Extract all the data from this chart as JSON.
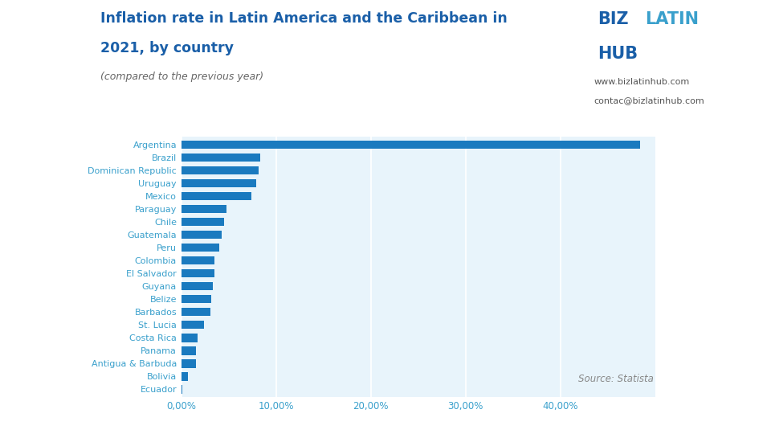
{
  "title_line1": "Inflation rate in Latin America and the Caribbean in",
  "title_line2": "2021, by country",
  "subtitle": "(compared to the previous year)",
  "source": "Source: Statista",
  "website1": "www.bizlatinhub.com",
  "website2": "contac@bizlatinhub.com",
  "countries": [
    "Argentina",
    "Brazil",
    "Dominican Republic",
    "Uruguay",
    "Mexico",
    "Paraguay",
    "Chile",
    "Guatemala",
    "Peru",
    "Colombia",
    "El Salvador",
    "Guyana",
    "Belize",
    "Barbados",
    "St. Lucia",
    "Costa Rica",
    "Panama",
    "Antigua & Barbuda",
    "Bolivia",
    "Ecuador"
  ],
  "values": [
    48.4,
    8.3,
    8.2,
    7.9,
    7.36,
    4.8,
    4.5,
    4.3,
    4.0,
    3.5,
    3.47,
    3.3,
    3.2,
    3.1,
    2.4,
    1.7,
    1.6,
    1.55,
    0.74,
    0.13
  ],
  "bar_color": "#1a7abf",
  "bg_color": "#e8f4fb",
  "outer_bg_color": "#ffffff",
  "title_color": "#1a5fa8",
  "subtitle_color": "#666666",
  "tick_color": "#3aa0cc",
  "source_color": "#888888",
  "website_color": "#555555",
  "biz_color": "#1a5fa8",
  "latin_color": "#3aa0cc",
  "hub_color": "#1a5fa8",
  "xlim": [
    0,
    50
  ],
  "xticks": [
    0,
    10,
    20,
    30,
    40
  ],
  "xtick_labels": [
    "0,00%",
    "10,00%",
    "20,00%",
    "30,00%",
    "40,00%"
  ]
}
